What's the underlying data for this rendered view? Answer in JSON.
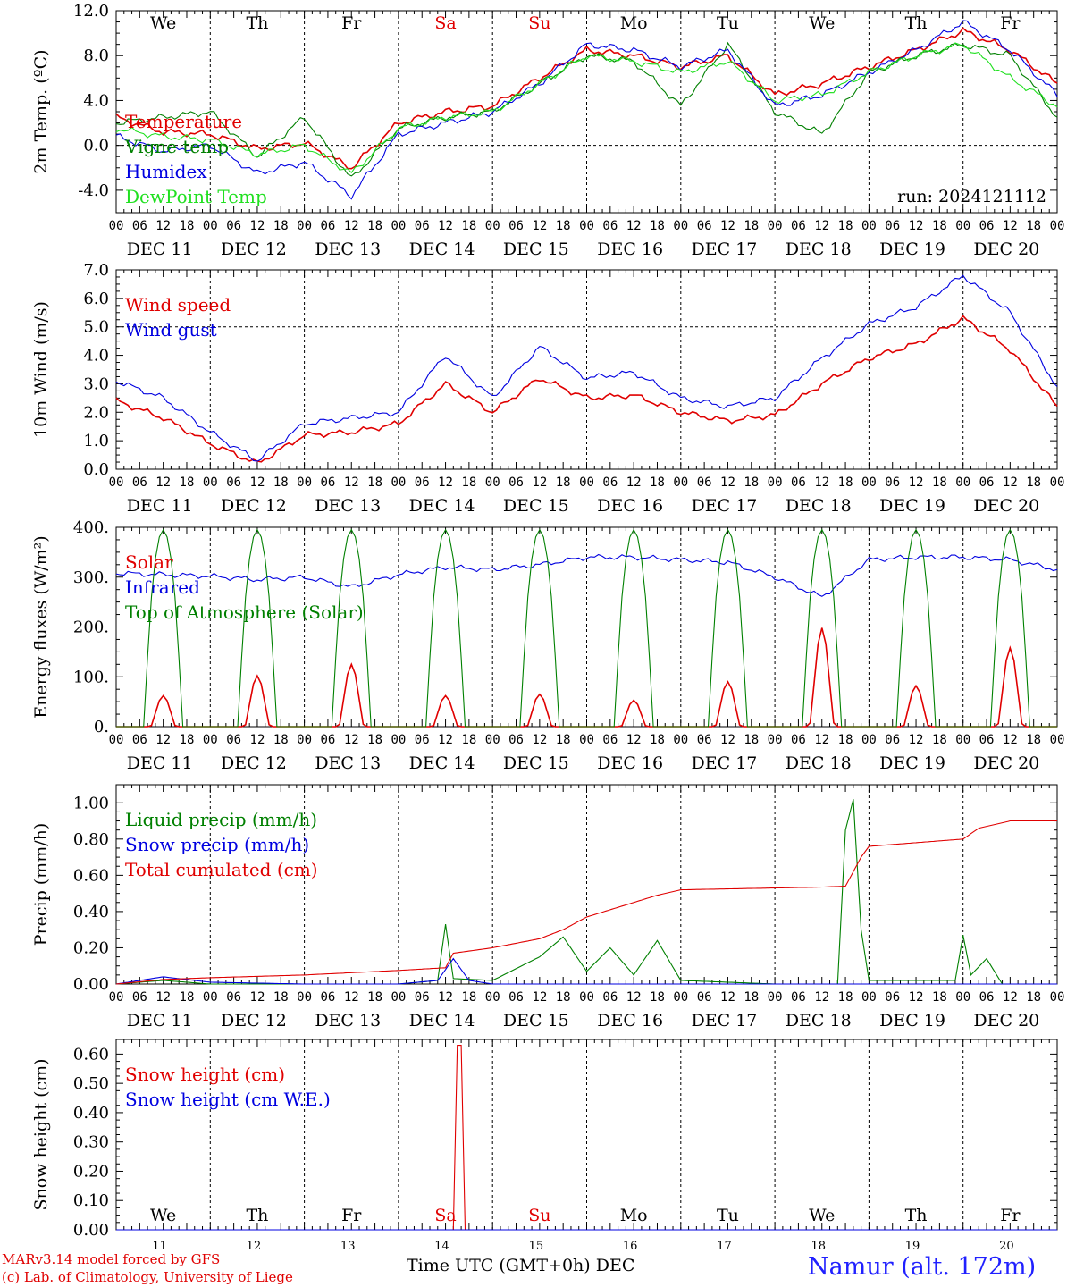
{
  "days": {
    "weekdays": [
      "We",
      "Th",
      "Fr",
      "Sa",
      "Su",
      "Mo",
      "Tu",
      "We",
      "Th",
      "Fr"
    ],
    "weekday_colors": [
      "#000000",
      "#000000",
      "#000000",
      "#e00000",
      "#e00000",
      "#000000",
      "#000000",
      "#000000",
      "#000000",
      "#000000"
    ],
    "dates": [
      "DEC 11",
      "DEC 12",
      "DEC 13",
      "DEC 14",
      "DEC 15",
      "DEC 16",
      "DEC 17",
      "DEC 18",
      "DEC 19",
      "DEC 20"
    ],
    "day_numbers": [
      "11",
      "12",
      "13",
      "14",
      "15",
      "16",
      "17",
      "18",
      "19",
      "20"
    ],
    "hour_ticks": [
      "00",
      "06",
      "12",
      "18"
    ],
    "end_tick": "00"
  },
  "footer": {
    "model_line": "MARv3.14 model forced by GFS",
    "lab_line": "(c) Lab. of Climatology, University of Liege",
    "xlabel": "Time UTC (GMT+0h)",
    "month": "DEC",
    "station": "Namur (alt. 172m)"
  },
  "chart_data": [
    {
      "type": "line",
      "ylabel": "2m Temp. (ºC)",
      "ylim": [
        -6,
        12
      ],
      "yticks": [
        -4,
        0,
        4,
        8,
        12
      ],
      "ytick_labels": [
        "-4.0",
        "0.0",
        "4.0",
        "8.0",
        "12.0"
      ],
      "dashed_y": [
        0
      ],
      "annotation": "run: 2024121112",
      "legend": "top-left",
      "series": [
        {
          "name": "Temperature",
          "color": "#e00000",
          "x": [
            0,
            12,
            24,
            36,
            48,
            60,
            72,
            84,
            96,
            108,
            120,
            132,
            144,
            156,
            168,
            180,
            192,
            204,
            216,
            228,
            240
          ],
          "values": [
            2.5,
            1.2,
            1.0,
            -0.3,
            0.2,
            -2.0,
            2.0,
            3.0,
            3.5,
            6.0,
            8.5,
            8.0,
            7.0,
            8.0,
            4.5,
            5.5,
            7.0,
            8.5,
            10.2,
            8.5,
            5.5
          ]
        },
        {
          "name": "Vigne temp",
          "color": "#008000",
          "x": [
            0,
            12,
            24,
            36,
            48,
            60,
            72,
            84,
            96,
            108,
            120,
            132,
            144,
            156,
            168,
            180,
            192,
            204,
            216,
            228,
            240
          ],
          "values": [
            2.0,
            2.5,
            3.0,
            -1.0,
            2.5,
            -3.0,
            1.5,
            2.5,
            3.0,
            5.5,
            8.0,
            7.5,
            3.5,
            9.0,
            3.0,
            1.0,
            6.5,
            8.0,
            9.0,
            8.0,
            2.5
          ]
        },
        {
          "name": "Humidex",
          "color": "#0000e0",
          "x": [
            0,
            12,
            24,
            36,
            48,
            60,
            72,
            84,
            96,
            108,
            120,
            132,
            144,
            156,
            168,
            180,
            192,
            204,
            216,
            228,
            240
          ],
          "values": [
            0.8,
            -0.5,
            0.0,
            -2.5,
            -1.5,
            -4.5,
            1.0,
            2.0,
            3.0,
            5.5,
            9.0,
            8.5,
            7.0,
            8.5,
            3.5,
            4.5,
            6.5,
            8.5,
            11.0,
            8.5,
            4.5
          ]
        },
        {
          "name": "DewPoint Temp",
          "color": "#20e020",
          "x": [
            0,
            12,
            24,
            36,
            48,
            60,
            72,
            84,
            96,
            108,
            120,
            132,
            144,
            156,
            168,
            180,
            192,
            204,
            216,
            228,
            240
          ],
          "values": [
            1.5,
            0.8,
            0.5,
            -0.8,
            0.0,
            -2.5,
            1.5,
            2.5,
            3.0,
            5.5,
            8.0,
            7.5,
            6.5,
            7.5,
            4.0,
            4.5,
            6.5,
            8.0,
            9.0,
            6.0,
            3.5
          ]
        }
      ]
    },
    {
      "type": "line",
      "ylabel": "10m Wind (m/s)",
      "ylim": [
        0,
        7
      ],
      "yticks": [
        0,
        1,
        2,
        3,
        4,
        5,
        6,
        7
      ],
      "ytick_labels": [
        "0.0",
        "1.0",
        "2.0",
        "3.0",
        "4.0",
        "5.0",
        "6.0",
        "7.0"
      ],
      "dashed_y": [
        5
      ],
      "legend": "top-left",
      "series": [
        {
          "name": "Wind speed",
          "color": "#e00000",
          "x": [
            0,
            12,
            24,
            36,
            48,
            60,
            72,
            84,
            96,
            108,
            120,
            132,
            144,
            156,
            168,
            180,
            192,
            204,
            216,
            228,
            240
          ],
          "values": [
            2.4,
            1.8,
            0.9,
            0.2,
            1.2,
            1.3,
            1.6,
            3.0,
            2.0,
            3.2,
            2.5,
            2.6,
            2.0,
            1.7,
            1.9,
            3.0,
            3.9,
            4.4,
            5.3,
            4.2,
            2.2
          ]
        },
        {
          "name": "Wind gust",
          "color": "#0000e0",
          "x": [
            0,
            12,
            24,
            36,
            48,
            60,
            72,
            84,
            96,
            108,
            120,
            132,
            144,
            156,
            168,
            180,
            192,
            204,
            216,
            228,
            240
          ],
          "values": [
            3.1,
            2.5,
            1.3,
            0.3,
            1.6,
            1.8,
            2.0,
            4.0,
            2.5,
            4.3,
            3.2,
            3.4,
            2.5,
            2.2,
            2.5,
            3.9,
            5.1,
            5.7,
            6.8,
            5.5,
            2.9
          ]
        }
      ]
    },
    {
      "type": "line",
      "ylabel": "Energy fluxes (W/m²)",
      "ylim": [
        0,
        400
      ],
      "yticks": [
        0,
        100,
        200,
        300,
        400
      ],
      "ytick_labels": [
        "0.",
        "100.",
        "200.",
        "300.",
        "400."
      ],
      "legend": "top-left",
      "series": [
        {
          "name": "Solar",
          "color": "#e00000",
          "peak_hour_of_day": 12,
          "daily_peaks": [
            62,
            102,
            125,
            62,
            65,
            53,
            90,
            198,
            82,
            158
          ]
        },
        {
          "name": "Infrared",
          "color": "#0000e0",
          "x": [
            0,
            12,
            24,
            36,
            48,
            60,
            72,
            84,
            96,
            108,
            120,
            132,
            144,
            156,
            168,
            180,
            192,
            204,
            216,
            228,
            240
          ],
          "values": [
            308,
            305,
            302,
            295,
            300,
            280,
            305,
            320,
            315,
            325,
            340,
            340,
            335,
            330,
            300,
            260,
            335,
            340,
            340,
            335,
            315
          ]
        },
        {
          "name": "Top of Atmosphere (Solar)",
          "color": "#008000",
          "peak_hour_of_day": 12,
          "daily_peaks": [
            395,
            395,
            395,
            395,
            395,
            395,
            395,
            395,
            395,
            395
          ]
        }
      ]
    },
    {
      "type": "line",
      "ylabel": "Precip (mm/h)",
      "ylim": [
        0,
        1.1
      ],
      "yticks": [
        0,
        0.2,
        0.4,
        0.6,
        0.8,
        1.0
      ],
      "ytick_labels": [
        "0.00",
        "0.20",
        "0.40",
        "0.60",
        "0.80",
        "1.00"
      ],
      "legend": "top-left",
      "series": [
        {
          "name": "Liquid precip (mm/h)",
          "color": "#008000",
          "x": [
            0,
            12,
            24,
            48,
            72,
            82,
            84,
            86,
            96,
            108,
            114,
            120,
            126,
            132,
            138,
            144,
            168,
            184,
            186,
            188,
            190,
            192,
            214,
            216,
            218,
            222,
            226
          ],
          "values": [
            0,
            0.02,
            0,
            0,
            0,
            0.02,
            0.33,
            0.03,
            0.02,
            0.15,
            0.26,
            0.07,
            0.2,
            0.05,
            0.24,
            0.02,
            0,
            0,
            0.85,
            1.02,
            0.3,
            0.02,
            0.02,
            0.27,
            0.05,
            0.14,
            0
          ]
        },
        {
          "name": "Snow precip (mm/h)",
          "color": "#0000e0",
          "x": [
            0,
            12,
            24,
            48,
            72,
            82,
            86,
            90,
            96,
            240
          ],
          "values": [
            0,
            0.04,
            0.01,
            0,
            0,
            0.02,
            0.14,
            0.02,
            0,
            0
          ]
        },
        {
          "name": "Total cumulated (cm)",
          "color": "#e00000",
          "x": [
            0,
            12,
            24,
            48,
            72,
            84,
            86,
            96,
            108,
            114,
            120,
            132,
            138,
            144,
            168,
            180,
            186,
            190,
            192,
            204,
            216,
            220,
            228,
            240
          ],
          "values": [
            0,
            0.025,
            0.035,
            0.05,
            0.075,
            0.09,
            0.17,
            0.2,
            0.25,
            0.3,
            0.37,
            0.45,
            0.49,
            0.52,
            0.53,
            0.535,
            0.54,
            0.7,
            0.76,
            0.78,
            0.8,
            0.86,
            0.9,
            0.9
          ]
        }
      ]
    },
    {
      "type": "line",
      "ylabel": "Snow height (cm)",
      "ylim": [
        0,
        0.65
      ],
      "yticks": [
        0,
        0.1,
        0.2,
        0.3,
        0.4,
        0.5,
        0.6
      ],
      "ytick_labels": [
        "0.00",
        "0.10",
        "0.20",
        "0.30",
        "0.40",
        "0.50",
        "0.60"
      ],
      "legend": "top-left",
      "series": [
        {
          "name": "Snow height (cm)",
          "color": "#e00000",
          "x": [
            0,
            86,
            87,
            88,
            89,
            240
          ],
          "values": [
            0,
            0,
            0.63,
            0.63,
            0,
            0
          ]
        },
        {
          "name": "Snow height (cm W.E.)",
          "color": "#0000e0",
          "x": [
            0,
            240
          ],
          "values": [
            0,
            0
          ]
        }
      ]
    }
  ]
}
